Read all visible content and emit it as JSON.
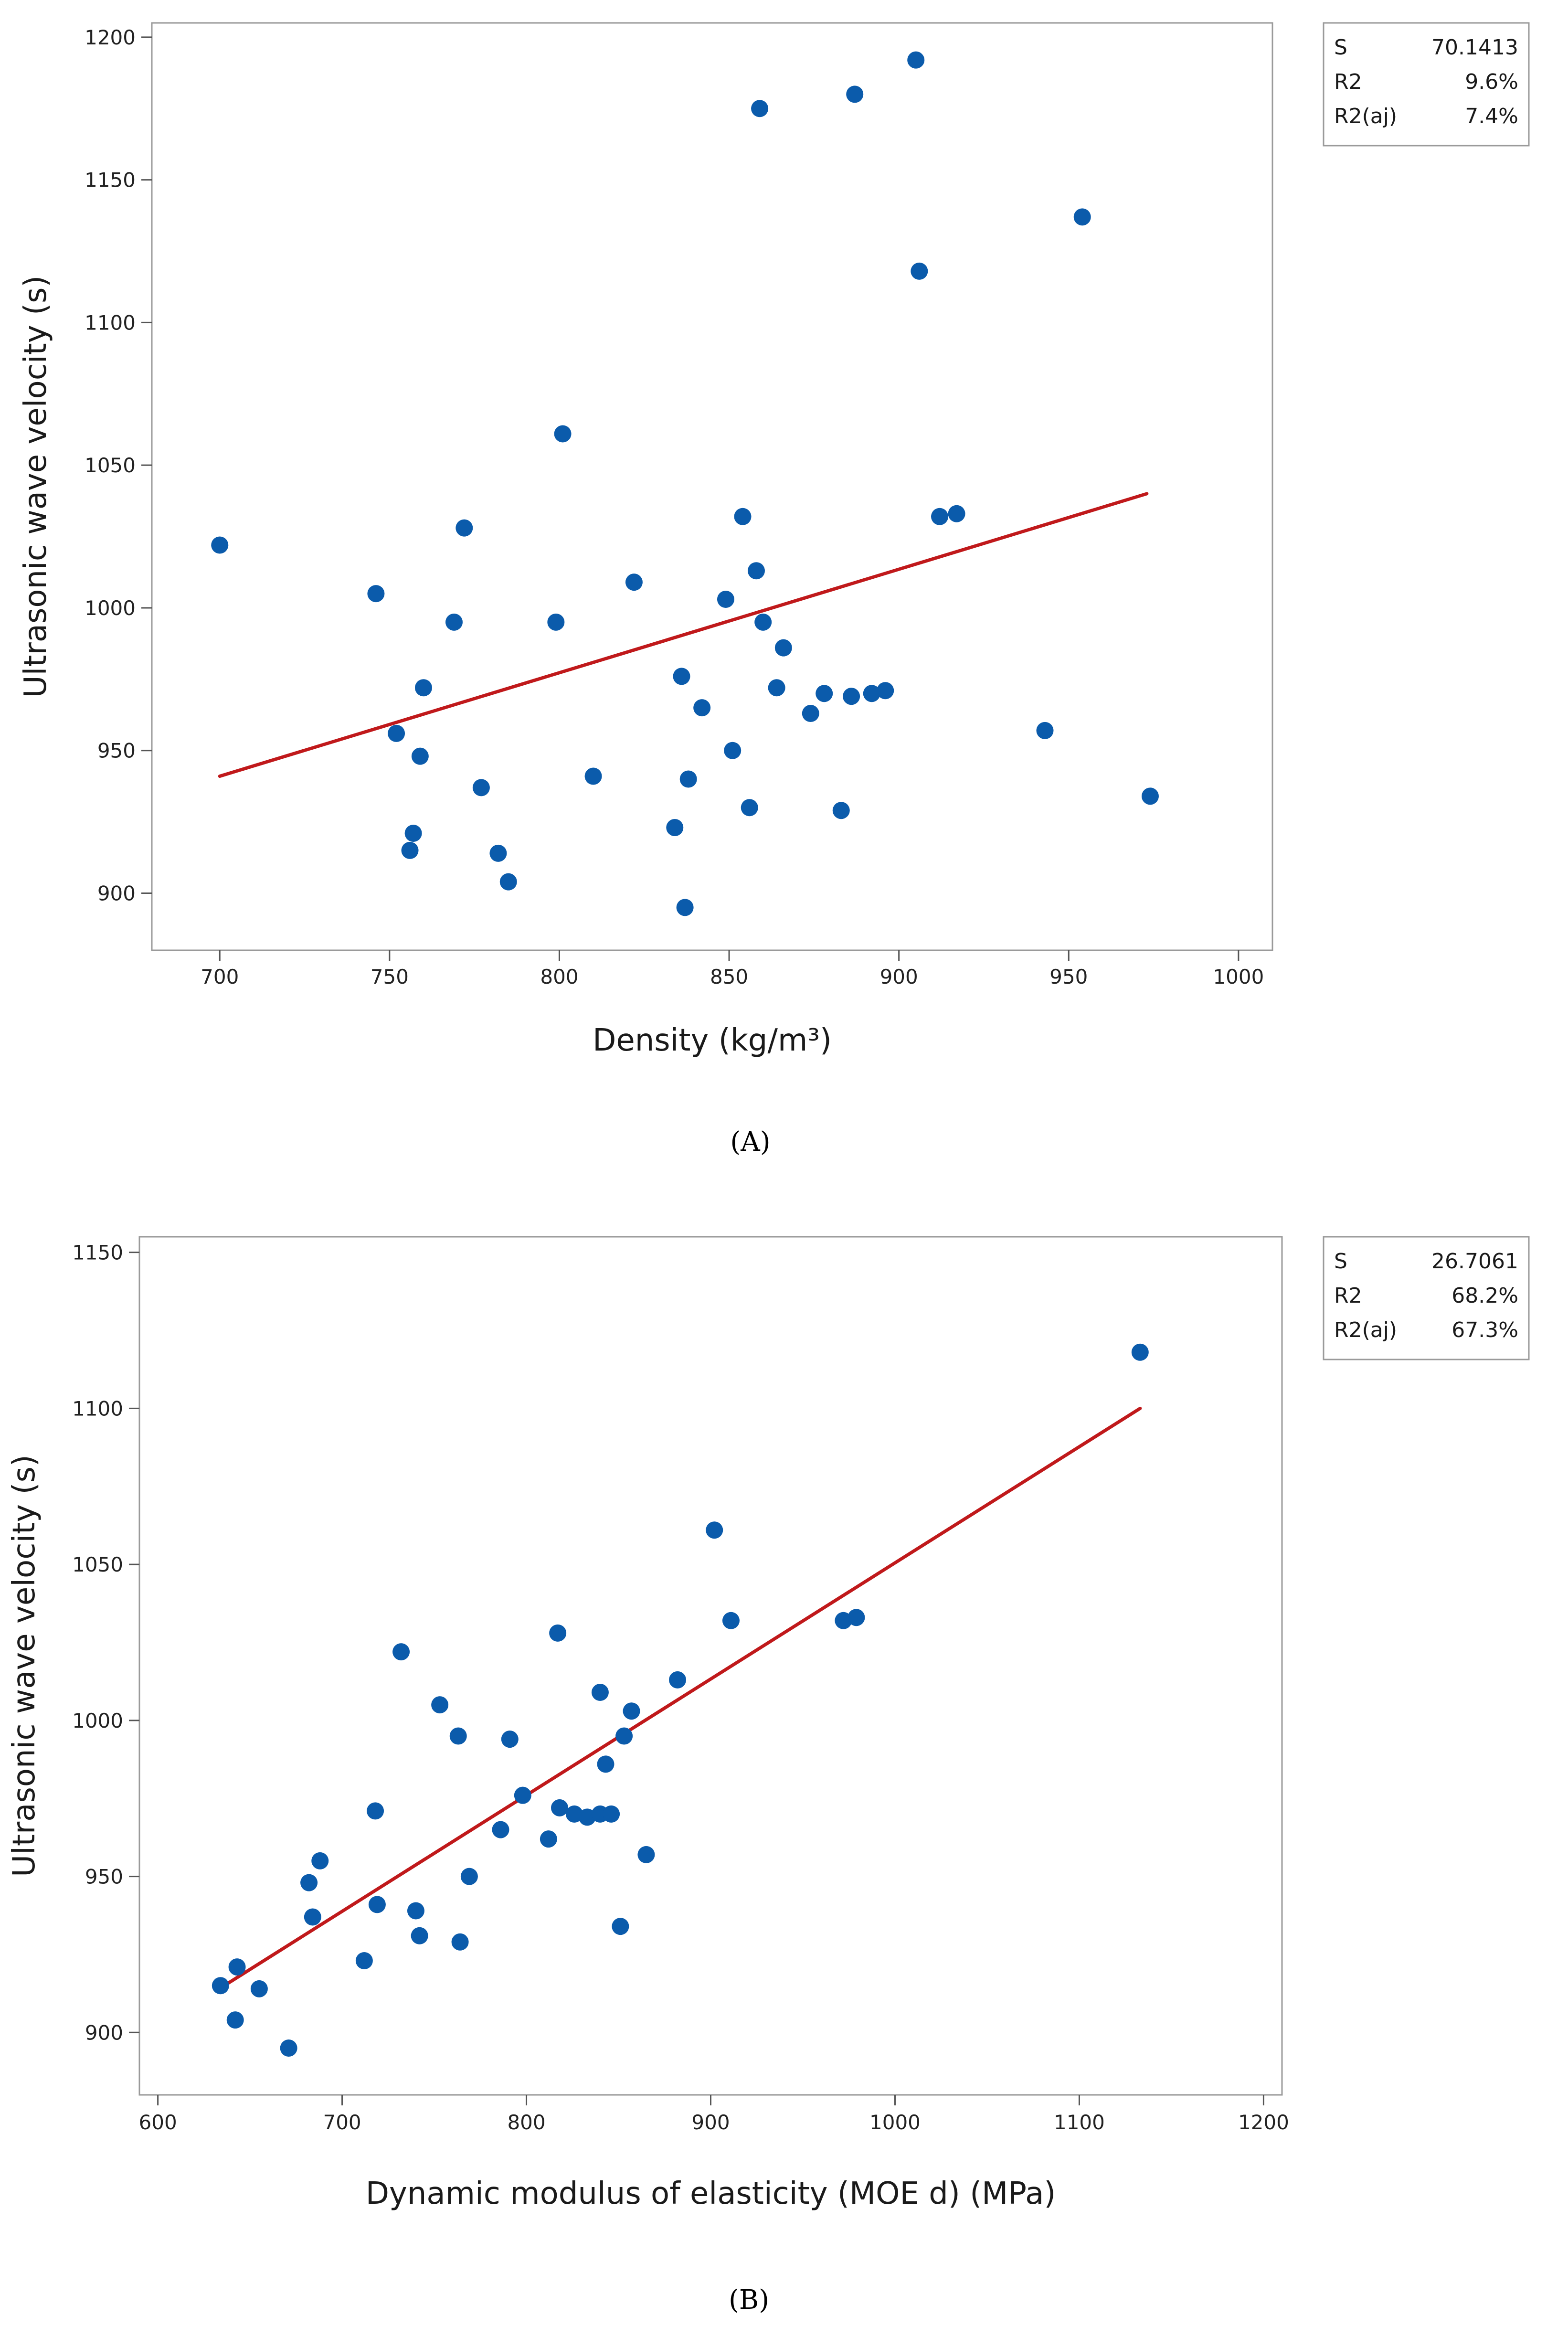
{
  "colors": {
    "point": "#0b5bab",
    "fit_line": "#c0191b",
    "frame": "#9a9a9a",
    "axis": "#555555",
    "text": "#222222"
  },
  "chart_data": [
    {
      "type": "scatter",
      "panel_label": "(A)",
      "xlabel": "Density (kg/m³)",
      "ylabel": "Ultrasonic wave velocity (s)",
      "xlim": [
        680,
        1010
      ],
      "ylim": [
        880,
        1205
      ],
      "xticks": [
        700,
        750,
        800,
        850,
        900,
        950,
        1000
      ],
      "yticks": [
        900,
        950,
        1000,
        1050,
        1100,
        1150,
        1200
      ],
      "grid": false,
      "legend": "right",
      "stats": [
        {
          "label": "S",
          "value": "70.1413"
        },
        {
          "label": "R2",
          "value": "9.6%"
        },
        {
          "label": "R2(aj)",
          "value": "7.4%"
        }
      ],
      "fit_line": {
        "x": [
          700,
          973
        ],
        "y": [
          941,
          1040
        ]
      },
      "points": [
        {
          "x": 700,
          "y": 1022
        },
        {
          "x": 746,
          "y": 1005
        },
        {
          "x": 752,
          "y": 956
        },
        {
          "x": 756,
          "y": 915
        },
        {
          "x": 757,
          "y": 921
        },
        {
          "x": 759,
          "y": 948
        },
        {
          "x": 760,
          "y": 972
        },
        {
          "x": 769,
          "y": 995
        },
        {
          "x": 772,
          "y": 1028
        },
        {
          "x": 777,
          "y": 937
        },
        {
          "x": 782,
          "y": 914
        },
        {
          "x": 785,
          "y": 904
        },
        {
          "x": 799,
          "y": 995
        },
        {
          "x": 801,
          "y": 1061
        },
        {
          "x": 810,
          "y": 941
        },
        {
          "x": 822,
          "y": 1009
        },
        {
          "x": 834,
          "y": 923
        },
        {
          "x": 836,
          "y": 976
        },
        {
          "x": 837,
          "y": 895
        },
        {
          "x": 838,
          "y": 940
        },
        {
          "x": 842,
          "y": 965
        },
        {
          "x": 849,
          "y": 1003
        },
        {
          "x": 851,
          "y": 950
        },
        {
          "x": 854,
          "y": 1032
        },
        {
          "x": 856,
          "y": 930
        },
        {
          "x": 858,
          "y": 1013
        },
        {
          "x": 859,
          "y": 1175
        },
        {
          "x": 860,
          "y": 995
        },
        {
          "x": 864,
          "y": 972
        },
        {
          "x": 866,
          "y": 986
        },
        {
          "x": 874,
          "y": 963
        },
        {
          "x": 878,
          "y": 970
        },
        {
          "x": 883,
          "y": 929
        },
        {
          "x": 886,
          "y": 969
        },
        {
          "x": 887,
          "y": 1180
        },
        {
          "x": 892,
          "y": 970
        },
        {
          "x": 896,
          "y": 971
        },
        {
          "x": 905,
          "y": 1192
        },
        {
          "x": 906,
          "y": 1118
        },
        {
          "x": 912,
          "y": 1032
        },
        {
          "x": 917,
          "y": 1033
        },
        {
          "x": 943,
          "y": 957
        },
        {
          "x": 954,
          "y": 1137
        },
        {
          "x": 974,
          "y": 934
        }
      ]
    },
    {
      "type": "scatter",
      "panel_label": "(B)",
      "xlabel": "Dynamic modulus of elasticity (MOE d) (MPa)",
      "ylabel": "Ultrasonic wave velocity (s)",
      "xlim": [
        590,
        1210
      ],
      "ylim": [
        880,
        1155
      ],
      "xticks": [
        600,
        700,
        800,
        900,
        1000,
        1100,
        1200
      ],
      "yticks": [
        900,
        950,
        1000,
        1050,
        1100,
        1150
      ],
      "grid": false,
      "legend": "right",
      "stats": [
        {
          "label": "S",
          "value": "26.7061"
        },
        {
          "label": "R2",
          "value": "68.2%"
        },
        {
          "label": "R2(aj)",
          "value": "67.3%"
        }
      ],
      "fit_line": {
        "x": [
          636,
          1133
        ],
        "y": [
          915,
          1100
        ]
      },
      "points": [
        {
          "x": 634,
          "y": 915
        },
        {
          "x": 642,
          "y": 904
        },
        {
          "x": 643,
          "y": 921
        },
        {
          "x": 655,
          "y": 914
        },
        {
          "x": 671,
          "y": 895
        },
        {
          "x": 682,
          "y": 948
        },
        {
          "x": 684,
          "y": 937
        },
        {
          "x": 688,
          "y": 955
        },
        {
          "x": 712,
          "y": 923
        },
        {
          "x": 718,
          "y": 971
        },
        {
          "x": 719,
          "y": 941
        },
        {
          "x": 732,
          "y": 1022
        },
        {
          "x": 740,
          "y": 939
        },
        {
          "x": 742,
          "y": 931
        },
        {
          "x": 753,
          "y": 1005
        },
        {
          "x": 763,
          "y": 995
        },
        {
          "x": 764,
          "y": 929
        },
        {
          "x": 769,
          "y": 950
        },
        {
          "x": 786,
          "y": 965
        },
        {
          "x": 791,
          "y": 994
        },
        {
          "x": 798,
          "y": 976
        },
        {
          "x": 812,
          "y": 962
        },
        {
          "x": 817,
          "y": 1028
        },
        {
          "x": 818,
          "y": 972
        },
        {
          "x": 826,
          "y": 970
        },
        {
          "x": 833,
          "y": 969
        },
        {
          "x": 840,
          "y": 1009
        },
        {
          "x": 840,
          "y": 970
        },
        {
          "x": 843,
          "y": 986
        },
        {
          "x": 846,
          "y": 970
        },
        {
          "x": 851,
          "y": 934
        },
        {
          "x": 853,
          "y": 995
        },
        {
          "x": 857,
          "y": 1003
        },
        {
          "x": 865,
          "y": 957
        },
        {
          "x": 882,
          "y": 1013
        },
        {
          "x": 902,
          "y": 1061
        },
        {
          "x": 911,
          "y": 1032
        },
        {
          "x": 972,
          "y": 1032
        },
        {
          "x": 979,
          "y": 1033
        },
        {
          "x": 1133,
          "y": 1118
        }
      ]
    }
  ]
}
